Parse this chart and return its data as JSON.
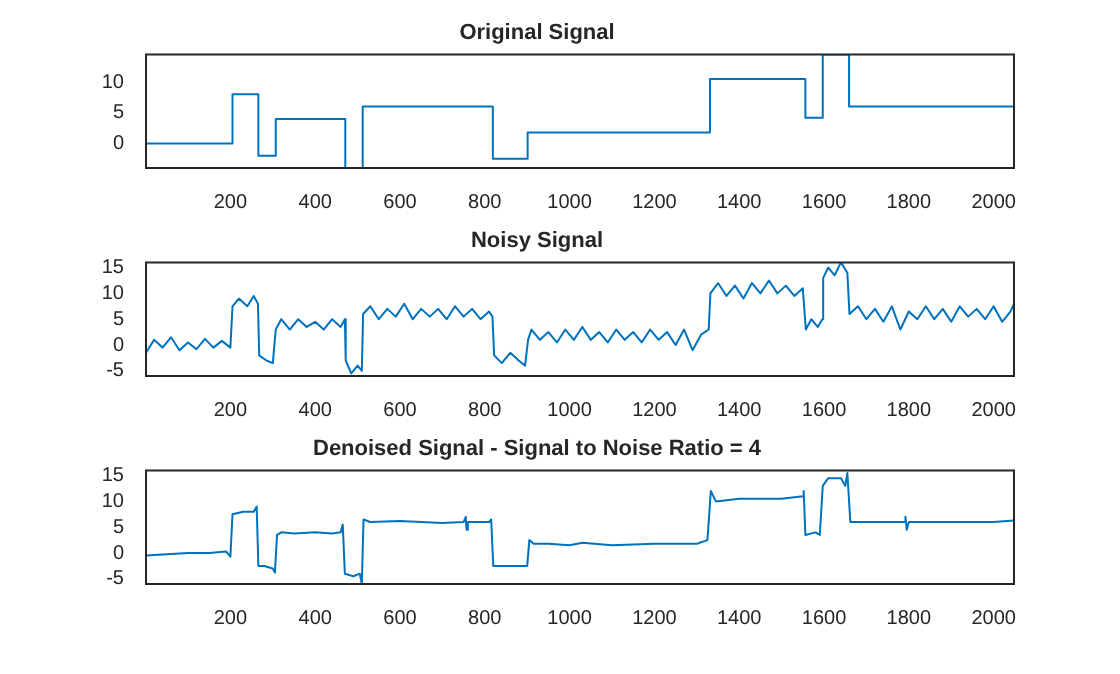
{
  "chart_data": [
    {
      "type": "step",
      "title": "Original Signal",
      "color": "#0072bd",
      "xlim": [
        1,
        2048
      ],
      "xticks": [
        200,
        400,
        600,
        800,
        1000,
        1200,
        1400,
        1600,
        1800,
        2000
      ],
      "ylim": [
        -4,
        14.5
      ],
      "yticks": [
        0,
        5,
        10
      ],
      "x": [
        1,
        205,
        266,
        307,
        471,
        512,
        819,
        901,
        1331,
        1556,
        1597,
        1659,
        2048
      ],
      "values": [
        0,
        8,
        -2,
        4,
        -4,
        6,
        -2.5,
        1.8,
        10.5,
        4.2,
        14.5,
        6,
        6
      ]
    },
    {
      "type": "line",
      "title": "Noisy Signal",
      "color": "#0072bd",
      "xlim": [
        1,
        2048
      ],
      "xticks": [
        200,
        400,
        600,
        800,
        1000,
        1200,
        1400,
        1600,
        1800,
        2000
      ],
      "ylim": [
        -6,
        16
      ],
      "yticks": [
        -5,
        0,
        5,
        10,
        15
      ],
      "x": [
        1,
        20,
        40,
        60,
        80,
        100,
        120,
        140,
        160,
        180,
        200,
        205,
        220,
        240,
        255,
        265,
        268,
        285,
        300,
        307,
        320,
        340,
        360,
        380,
        400,
        420,
        440,
        460,
        470,
        472,
        485,
        500,
        510,
        513,
        530,
        550,
        570,
        590,
        610,
        630,
        650,
        670,
        690,
        710,
        730,
        750,
        770,
        790,
        810,
        818,
        822,
        840,
        860,
        880,
        895,
        902,
        910,
        930,
        950,
        970,
        990,
        1010,
        1030,
        1050,
        1070,
        1090,
        1110,
        1130,
        1150,
        1170,
        1190,
        1210,
        1230,
        1250,
        1270,
        1290,
        1310,
        1328,
        1332,
        1350,
        1370,
        1390,
        1410,
        1430,
        1450,
        1470,
        1490,
        1510,
        1530,
        1550,
        1557,
        1570,
        1585,
        1596,
        1598,
        1610,
        1625,
        1640,
        1655,
        1660,
        1680,
        1700,
        1720,
        1740,
        1760,
        1780,
        1800,
        1820,
        1840,
        1860,
        1880,
        1900,
        1920,
        1940,
        1960,
        1980,
        2000,
        2020,
        2040,
        2048
      ],
      "values": [
        -1.5,
        1,
        -0.5,
        1.5,
        -1,
        0.5,
        -0.8,
        1.2,
        -0.5,
        0.8,
        -0.5,
        7.5,
        9,
        7.5,
        9.5,
        8,
        -2,
        -3,
        -3.5,
        3,
        5,
        3,
        5,
        3.5,
        4.5,
        3,
        5,
        3.5,
        5,
        -3,
        -5.5,
        -4,
        -5,
        6,
        7.5,
        5,
        7,
        5.5,
        8,
        5,
        7,
        5.5,
        7,
        5,
        7.5,
        5.5,
        7,
        5,
        6.5,
        5.5,
        -2,
        -3.5,
        -1.5,
        -3,
        -4,
        1,
        3,
        1,
        2.5,
        0.5,
        3,
        1,
        3.5,
        1,
        2.5,
        0.5,
        3,
        1,
        2.5,
        0.5,
        3,
        1,
        2.5,
        0,
        3,
        -1,
        2,
        3,
        10,
        12,
        9.5,
        11.5,
        9,
        12,
        10,
        12.5,
        10,
        11.5,
        9.5,
        11,
        3,
        5,
        3.5,
        5,
        13,
        15,
        13.5,
        16,
        14,
        6,
        7.5,
        5,
        7,
        4.5,
        7.5,
        3,
        6.5,
        5,
        7.5,
        5,
        7,
        4.5,
        7.5,
        5.5,
        7,
        5,
        7.5,
        4.5,
        6.5,
        8
      ]
    },
    {
      "type": "line",
      "title": "Denoised Signal - Signal to Noise Ratio = 4",
      "color": "#0072bd",
      "xlim": [
        1,
        2048
      ],
      "xticks": [
        200,
        400,
        600,
        800,
        1000,
        1200,
        1400,
        1600,
        1800,
        2000
      ],
      "ylim": [
        -6,
        16
      ],
      "yticks": [
        -5,
        0,
        5,
        10,
        15
      ],
      "x": [
        1,
        100,
        150,
        190,
        200,
        205,
        230,
        255,
        262,
        266,
        280,
        300,
        305,
        310,
        320,
        350,
        400,
        440,
        460,
        465,
        470,
        490,
        505,
        510,
        514,
        530,
        600,
        700,
        750,
        755,
        757,
        760,
        810,
        815,
        820,
        850,
        900,
        905,
        915,
        950,
        1000,
        1030,
        1100,
        1200,
        1300,
        1325,
        1333,
        1345,
        1400,
        1500,
        1550,
        1552,
        1556,
        1580,
        1590,
        1597,
        1610,
        1640,
        1650,
        1655,
        1662,
        1680,
        1790,
        1792,
        1795,
        1800,
        1900,
        2000,
        2048
      ],
      "values": [
        -0.5,
        0,
        0,
        0.3,
        -0.7,
        7.5,
        8,
        8,
        9,
        -2.5,
        -2.5,
        -3,
        -3.8,
        3.5,
        4,
        3.8,
        4,
        3.8,
        4,
        5.5,
        -4,
        -4.5,
        -4,
        -6,
        6.5,
        6,
        6.2,
        5.8,
        6,
        7,
        4.5,
        6,
        6,
        6.5,
        -2.5,
        -2.5,
        -2.5,
        2.5,
        1.8,
        1.8,
        1.5,
        2,
        1.5,
        1.8,
        1.8,
        2.5,
        12,
        10,
        10.5,
        10.5,
        11,
        12,
        3.5,
        4,
        3.5,
        13,
        14.5,
        14.5,
        13,
        15.5,
        6,
        6,
        6,
        7,
        4.5,
        6,
        6,
        6,
        6.3
      ]
    }
  ]
}
